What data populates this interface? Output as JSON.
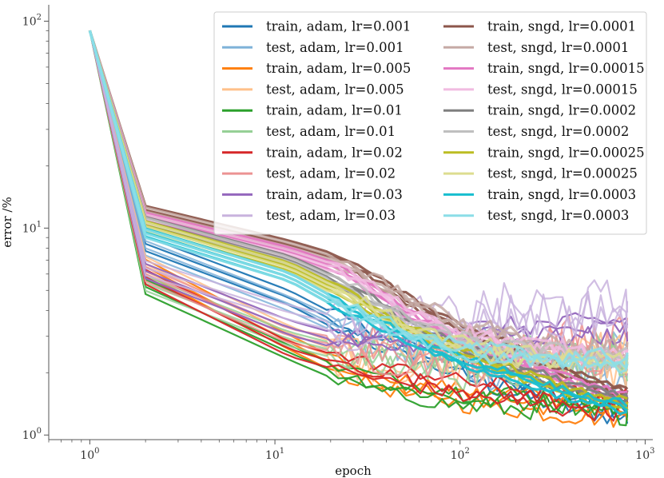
{
  "chart_data": {
    "type": "line",
    "xscale": "log",
    "yscale": "log",
    "xlabel": "epoch",
    "ylabel": "error /%",
    "xlim": [
      0.6,
      1100
    ],
    "ylim": [
      0.95,
      120
    ],
    "x_ticks": [
      {
        "value": 1,
        "base": "10",
        "exp": "0"
      },
      {
        "value": 10,
        "base": "10",
        "exp": "1"
      },
      {
        "value": 100,
        "base": "10",
        "exp": "2"
      },
      {
        "value": 1000,
        "base": "10",
        "exp": "3"
      }
    ],
    "y_ticks": [
      {
        "value": 1,
        "base": "10",
        "exp": "0"
      },
      {
        "value": 10,
        "base": "10",
        "exp": "1"
      },
      {
        "value": 100,
        "base": "10",
        "exp": "2"
      }
    ],
    "legend_position": "top-right",
    "x": [
      1,
      2,
      12,
      23,
      50,
      100,
      200,
      400,
      800
    ],
    "series": [
      {
        "name": "train, adam, lr=0.001",
        "color": "#1f77b4",
        "values": [
          90,
          8.4,
          4.6,
          3.4,
          2.6,
          2.1,
          1.7,
          1.45,
          1.3
        ]
      },
      {
        "name": "test, adam, lr=0.001",
        "color": "#7fb2d9",
        "values": [
          90,
          8.0,
          4.3,
          3.3,
          2.7,
          2.4,
          2.3,
          2.2,
          2.2
        ]
      },
      {
        "name": "train, adam, lr=0.005",
        "color": "#ff7f0e",
        "values": [
          90,
          6.5,
          2.8,
          2.1,
          1.7,
          1.55,
          1.45,
          1.35,
          1.3
        ]
      },
      {
        "name": "test, adam, lr=0.005",
        "color": "#ffc08a",
        "values": [
          90,
          6.7,
          3.1,
          2.5,
          2.3,
          2.25,
          2.2,
          2.2,
          2.3
        ]
      },
      {
        "name": "train, adam, lr=0.01",
        "color": "#2ca02c",
        "values": [
          90,
          5.2,
          2.5,
          1.95,
          1.65,
          1.5,
          1.45,
          1.4,
          1.35
        ]
      },
      {
        "name": "test, adam, lr=0.01",
        "color": "#96d096",
        "values": [
          90,
          5.4,
          2.9,
          2.5,
          2.3,
          2.3,
          2.3,
          2.3,
          2.4
        ]
      },
      {
        "name": "train, adam, lr=0.02",
        "color": "#d62728",
        "values": [
          90,
          5.8,
          2.6,
          2.2,
          1.9,
          1.7,
          1.55,
          1.45,
          1.4
        ]
      },
      {
        "name": "test, adam, lr=0.02",
        "color": "#ec9393",
        "values": [
          90,
          6.0,
          3.0,
          2.7,
          2.5,
          2.4,
          2.5,
          2.6,
          2.7
        ]
      },
      {
        "name": "train, adam, lr=0.03",
        "color": "#9467bd",
        "values": [
          90,
          6.2,
          3.3,
          2.8,
          2.9,
          3.0,
          3.1,
          3.2,
          3.3
        ]
      },
      {
        "name": "test, adam, lr=0.03",
        "color": "#c9b3de",
        "values": [
          90,
          6.4,
          3.9,
          3.4,
          3.5,
          3.6,
          3.8,
          3.9,
          4.0
        ]
      },
      {
        "name": "train, sngd, lr=0.0001",
        "color": "#8c564b",
        "values": [
          90,
          12.2,
          8.3,
          7.0,
          4.6,
          3.3,
          2.6,
          2.0,
          1.6
        ]
      },
      {
        "name": "test, sngd, lr=0.0001",
        "color": "#c6aaa5",
        "values": [
          90,
          12.0,
          8.1,
          6.8,
          4.5,
          3.4,
          2.9,
          2.6,
          2.5
        ]
      },
      {
        "name": "train, sngd, lr=0.00015",
        "color": "#e377c2",
        "values": [
          90,
          11.3,
          7.7,
          6.3,
          4.0,
          2.9,
          2.3,
          1.8,
          1.5
        ]
      },
      {
        "name": "test, sngd, lr=0.00015",
        "color": "#f1bbe1",
        "values": [
          90,
          11.1,
          7.5,
          6.2,
          4.0,
          3.1,
          2.7,
          2.5,
          2.4
        ]
      },
      {
        "name": "train, sngd, lr=0.0002",
        "color": "#7f7f7f",
        "values": [
          90,
          10.8,
          7.0,
          5.4,
          3.6,
          2.6,
          2.1,
          1.7,
          1.45
        ]
      },
      {
        "name": "test, sngd, lr=0.0002",
        "color": "#bfbfbf",
        "values": [
          90,
          10.7,
          6.9,
          5.3,
          3.6,
          2.8,
          2.5,
          2.4,
          2.3
        ]
      },
      {
        "name": "train, sngd, lr=0.00025",
        "color": "#bcbd22",
        "values": [
          90,
          10.3,
          6.5,
          4.9,
          3.3,
          2.5,
          2.0,
          1.6,
          1.4
        ]
      },
      {
        "name": "test, sngd, lr=0.00025",
        "color": "#dddd90",
        "values": [
          90,
          10.2,
          6.4,
          4.8,
          3.3,
          2.7,
          2.4,
          2.3,
          2.25
        ]
      },
      {
        "name": "train, sngd, lr=0.0003",
        "color": "#17becf",
        "values": [
          90,
          9.5,
          5.8,
          4.2,
          3.0,
          2.3,
          1.9,
          1.55,
          1.35
        ]
      },
      {
        "name": "test, sngd, lr=0.0003",
        "color": "#8bdee7",
        "values": [
          90,
          9.4,
          5.8,
          4.2,
          3.1,
          2.6,
          2.4,
          2.3,
          2.3
        ]
      }
    ]
  }
}
